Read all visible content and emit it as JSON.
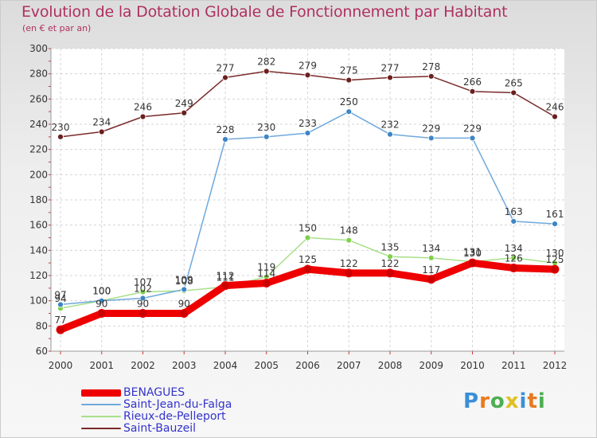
{
  "title": "Evolution de la Dotation Globale de Fonctionnement par Habitant",
  "subtitle": "(en € et par an)",
  "logo": {
    "text": "Proxiti",
    "colors": [
      "#3a8fd8",
      "#e87a1e",
      "#4caf50",
      "#e0c020",
      "#3a8fd8",
      "#e87a1e",
      "#4caf50"
    ]
  },
  "chart_data": {
    "type": "line",
    "title": "Evolution de la Dotation Globale de Fonctionnement par Habitant",
    "subtitle": "(en € et par an)",
    "xlabel": "",
    "ylabel": "",
    "x": [
      "2000",
      "2001",
      "2002",
      "2003",
      "2004",
      "2005",
      "2006",
      "2007",
      "2008",
      "2009",
      "2010",
      "2011",
      "2012"
    ],
    "ylim": [
      60,
      300
    ],
    "yticks": [
      60,
      80,
      100,
      120,
      140,
      160,
      180,
      200,
      220,
      240,
      260,
      280,
      300
    ],
    "grid": true,
    "legend_position": "bottom-left",
    "series": [
      {
        "name": "BENAGUES",
        "color": "#ee0000",
        "marker_color": "#cc0000",
        "width": "thick",
        "values": [
          77,
          90,
          90,
          90,
          112,
          114,
          125,
          122,
          122,
          117,
          130,
          126,
          125
        ]
      },
      {
        "name": "Saint-Jean-du-Falga",
        "color": "#6fa8dc",
        "marker_color": "#3d85c6",
        "width": "thin",
        "values": [
          97,
          100,
          102,
          109,
          228,
          230,
          233,
          250,
          232,
          229,
          229,
          163,
          161
        ]
      },
      {
        "name": "Rieux-de-Pelleport",
        "color": "#a8e08a",
        "marker_color": "#7ed14a",
        "width": "thin",
        "values": [
          94,
          100,
          107,
          108,
          111,
          119,
          150,
          148,
          135,
          134,
          131,
          134,
          130
        ]
      },
      {
        "name": "Saint-Bauzeil",
        "color": "#7a2a2a",
        "marker_color": "#6b1f1f",
        "width": "thin",
        "values": [
          230,
          234,
          246,
          249,
          277,
          282,
          279,
          275,
          277,
          278,
          266,
          265,
          246
        ]
      }
    ]
  }
}
